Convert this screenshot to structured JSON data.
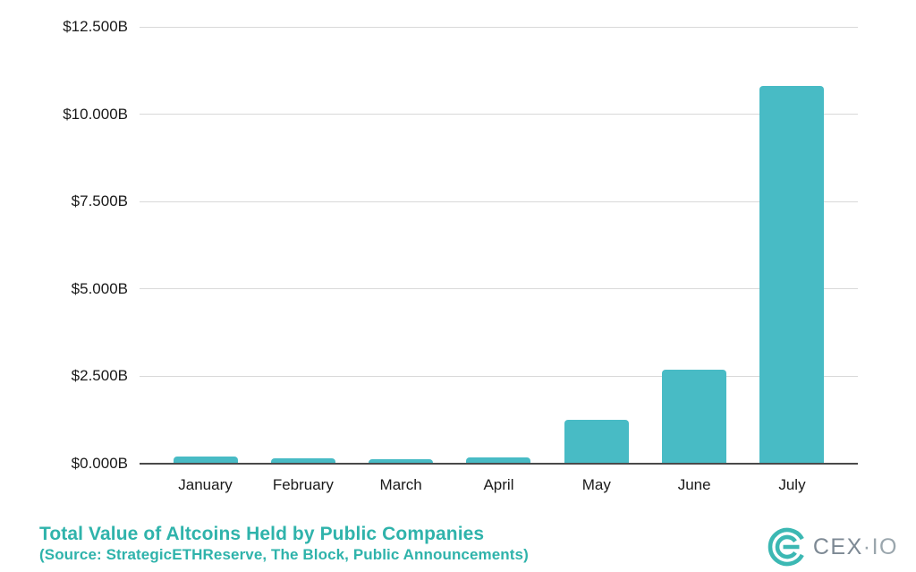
{
  "chart_data": {
    "type": "bar",
    "title": "Total Value of Altcoins Held by Public Companies",
    "subtitle": "(Source: StrategicETHReserve, The Block, Public Announcements)",
    "categories": [
      "January",
      "February",
      "March",
      "April",
      "May",
      "June",
      "July"
    ],
    "values": [
      0.2,
      0.16,
      0.13,
      0.18,
      1.25,
      2.7,
      10.8
    ],
    "value_unit": "billions USD",
    "y_ticks": [
      0,
      2.5,
      5,
      7.5,
      10,
      12.5
    ],
    "y_tick_labels": [
      "$0.000B",
      "$2.500B",
      "$5.000B",
      "$7.500B",
      "$10.000B",
      "$12.500B"
    ],
    "ylim": [
      0,
      12.5
    ],
    "xlabel": "",
    "ylabel": "",
    "grid": true,
    "legend_position": "none",
    "bar_color": "#48BBC5"
  },
  "footer": {
    "title": "Total Value of Altcoins Held by Public Companies",
    "subtitle": "(Source: StrategicETHReserve, The Block, Public Announcements)"
  },
  "logo": {
    "cex": "CEX",
    "dot": "·",
    "io": "IO"
  },
  "colors": {
    "bar": "#48BBC5",
    "title_text": "#2FB3AB",
    "tick_text": "#1a1a1a",
    "gridline": "#d9d9d9",
    "axis_line": "#4a4a4a",
    "logo_mark": "#3CB8B3",
    "logo_text_primary": "#7D8994",
    "logo_text_secondary": "#9AA6AD"
  }
}
